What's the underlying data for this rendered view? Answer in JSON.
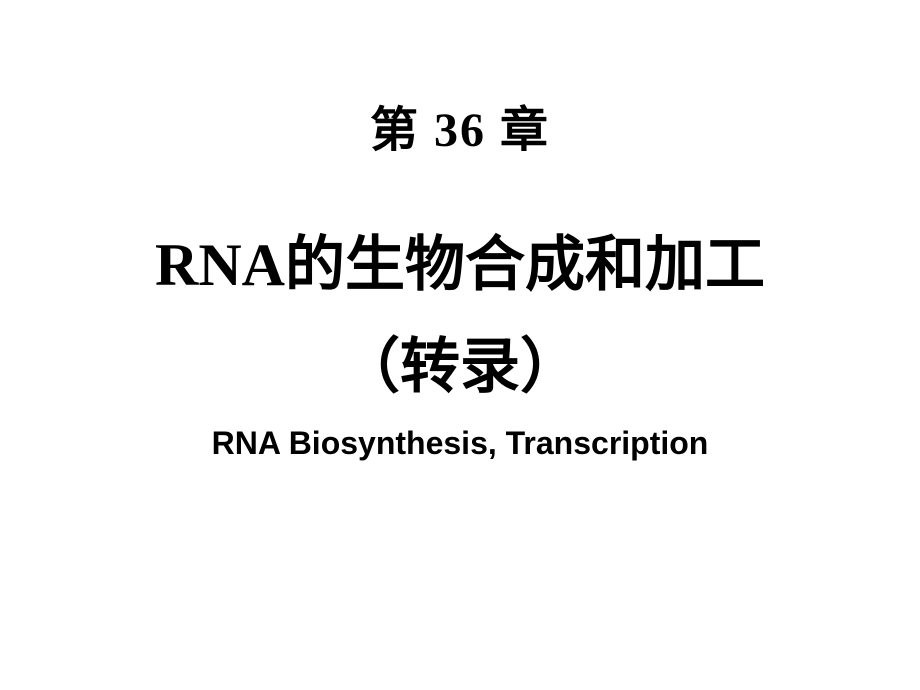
{
  "slide": {
    "chapter_label": "第 36 章",
    "main_title_line1": "RNA的生物合成和加工",
    "main_title_line2": "（转录）",
    "english_subtitle": "RNA Biosynthesis, Transcription",
    "background_color": "#ffffff",
    "text_color": "#000000",
    "chapter_fontsize": 48,
    "title_fontsize": 60,
    "subtitle_fontsize": 32
  }
}
